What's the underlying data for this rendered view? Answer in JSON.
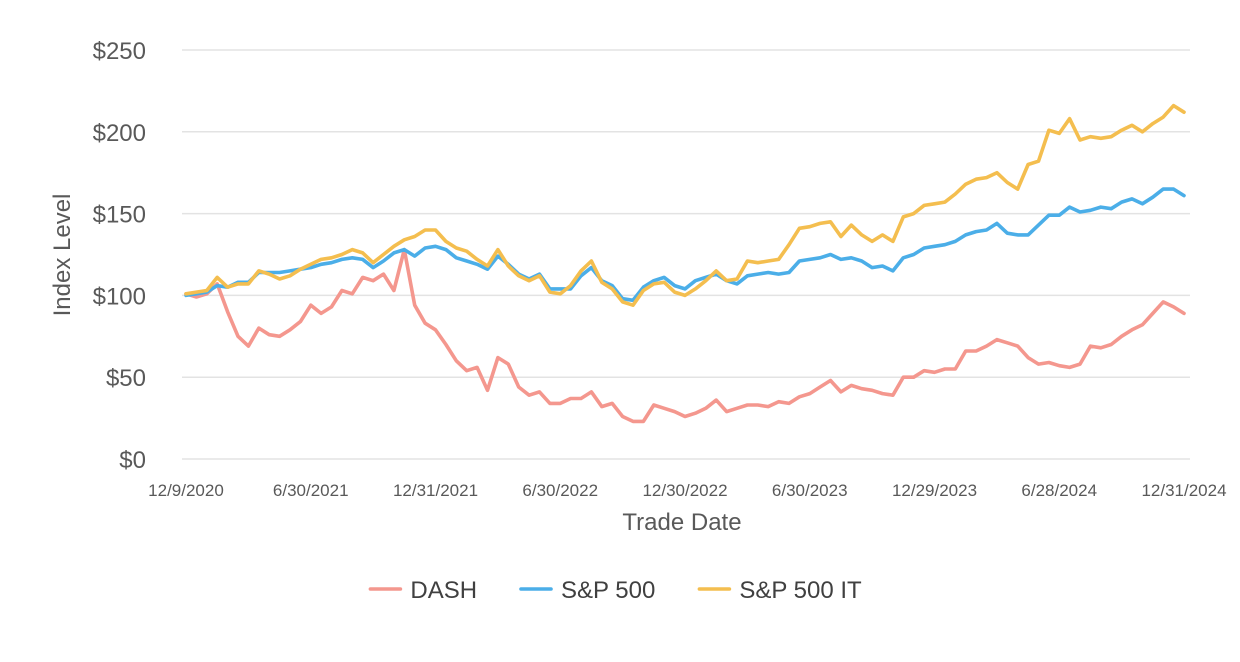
{
  "chart_data": {
    "type": "line",
    "title": "",
    "xlabel": "Trade Date",
    "ylabel": "Index Level",
    "ylim": [
      0,
      250
    ],
    "y_ticks": [
      0,
      50,
      100,
      150,
      200,
      250
    ],
    "y_tick_labels": [
      "$0",
      "$50",
      "$100",
      "$150",
      "$200",
      "$250"
    ],
    "x_tick_labels": [
      "12/9/2020",
      "6/30/2021",
      "12/31/2021",
      "6/30/2022",
      "12/30/2022",
      "6/30/2023",
      "12/29/2023",
      "6/28/2024",
      "12/31/2024"
    ],
    "x_tick_positions": [
      0,
      15,
      30,
      45,
      60,
      75,
      90,
      105,
      120
    ],
    "x_range": [
      0,
      120
    ],
    "grid": true,
    "legend_position": "bottom",
    "series": [
      {
        "name": "DASH",
        "color": "#F4978E",
        "values": [
          101,
          99,
          101,
          107,
          90,
          75,
          69,
          80,
          76,
          75,
          79,
          84,
          94,
          89,
          93,
          103,
          101,
          111,
          109,
          113,
          103,
          128,
          94,
          83,
          79,
          70,
          60,
          54,
          56,
          42,
          62,
          58,
          44,
          39,
          41,
          34,
          34,
          37,
          37,
          41,
          32,
          34,
          26,
          23,
          23,
          33,
          31,
          29,
          26,
          28,
          31,
          36,
          29,
          31,
          33,
          33,
          32,
          35,
          34,
          38,
          40,
          44,
          48,
          41,
          45,
          43,
          42,
          40,
          39,
          50,
          50,
          54,
          53,
          55,
          55,
          66,
          66,
          69,
          73,
          71,
          69,
          62,
          58,
          59,
          57,
          56,
          58,
          69,
          68,
          70,
          75,
          79,
          82,
          89,
          96,
          93,
          89
        ]
      },
      {
        "name": "S&P 500",
        "color": "#4BAEE8",
        "values": [
          100,
          101,
          102,
          106,
          105,
          108,
          108,
          114,
          114,
          114,
          115,
          116,
          117,
          119,
          120,
          122,
          123,
          122,
          117,
          121,
          126,
          128,
          124,
          129,
          130,
          128,
          123,
          121,
          119,
          116,
          124,
          119,
          113,
          110,
          113,
          104,
          104,
          104,
          112,
          117,
          109,
          106,
          98,
          97,
          105,
          109,
          111,
          106,
          104,
          109,
          111,
          113,
          109,
          107,
          112,
          113,
          114,
          113,
          114,
          121,
          122,
          123,
          125,
          122,
          123,
          121,
          117,
          118,
          115,
          123,
          125,
          129,
          130,
          131,
          133,
          137,
          139,
          140,
          144,
          138,
          137,
          137,
          143,
          149,
          149,
          154,
          151,
          152,
          154,
          153,
          157,
          159,
          156,
          160,
          165,
          165,
          161
        ]
      },
      {
        "name": "S&P 500 IT",
        "color": "#F4BE4F",
        "values": [
          101,
          102,
          103,
          111,
          105,
          107,
          107,
          115,
          113,
          110,
          112,
          116,
          119,
          122,
          123,
          125,
          128,
          126,
          120,
          125,
          130,
          134,
          136,
          140,
          140,
          133,
          129,
          127,
          122,
          118,
          128,
          118,
          112,
          109,
          112,
          102,
          101,
          106,
          115,
          121,
          108,
          104,
          96,
          94,
          103,
          107,
          108,
          102,
          100,
          104,
          109,
          115,
          109,
          110,
          121,
          120,
          121,
          122,
          131,
          141,
          142,
          144,
          145,
          136,
          143,
          137,
          133,
          137,
          133,
          148,
          150,
          155,
          156,
          157,
          162,
          168,
          171,
          172,
          175,
          169,
          165,
          180,
          182,
          201,
          199,
          208,
          195,
          197,
          196,
          197,
          201,
          204,
          200,
          205,
          209,
          216,
          212
        ]
      }
    ]
  }
}
